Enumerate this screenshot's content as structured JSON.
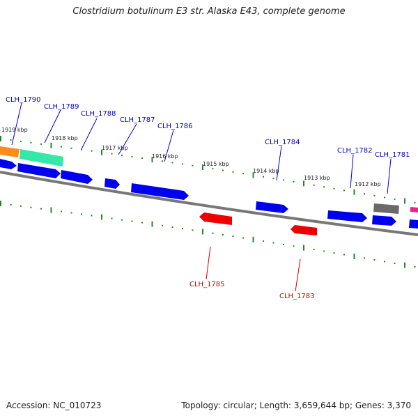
{
  "title": "Clostridium botulinum E3 str. Alaska E43, complete genome",
  "footer": {
    "accession": "Accession: NC_010723",
    "summary": "Topology: circular; Length: 3,659,644 bp; Genes: 3,370"
  },
  "colors": {
    "forward": "#0000ee",
    "reverse": "#ee0000",
    "orange": "#ff8c1a",
    "green": "#33e8a8",
    "gray": "#666666",
    "magenta": "#ee2288",
    "tick": "#228822",
    "backbone": "#777777"
  },
  "ticks": [
    {
      "label": "1919 kbp"
    },
    {
      "label": "1918 kbp"
    },
    {
      "label": "1917 kbp"
    },
    {
      "label": "1916 kbp"
    },
    {
      "label": "1915 kbp"
    },
    {
      "label": "1914 kbp"
    },
    {
      "label": "1913 kbp"
    },
    {
      "label": "1912 kbp"
    }
  ],
  "gene_labels": [
    {
      "text": "CLH_1790",
      "strand": "forward"
    },
    {
      "text": "CLH_1789",
      "strand": "forward"
    },
    {
      "text": "CLH_1788",
      "strand": "forward"
    },
    {
      "text": "CLH_1787",
      "strand": "forward"
    },
    {
      "text": "CLH_1786",
      "strand": "forward"
    },
    {
      "text": "CLH_1784",
      "strand": "forward"
    },
    {
      "text": "CLH_1782",
      "strand": "forward"
    },
    {
      "text": "CLH_1781",
      "strand": "forward"
    },
    {
      "text": "CLH_1785",
      "strand": "reverse"
    },
    {
      "text": "CLH_1783",
      "strand": "reverse"
    }
  ]
}
